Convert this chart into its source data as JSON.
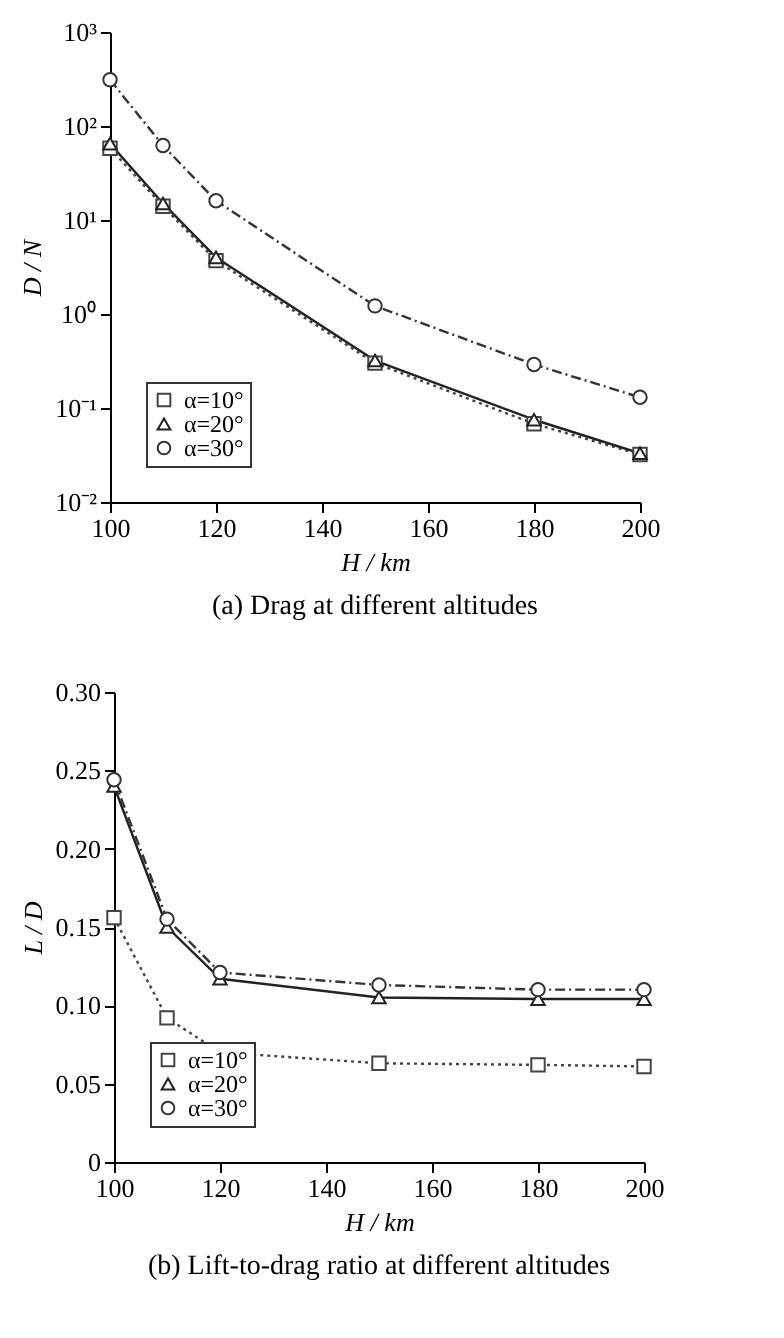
{
  "chart_data": [
    {
      "type": "line",
      "title": "(a) Drag at different altitudes",
      "xlabel": "H / km",
      "ylabel": "D / N",
      "x": [
        100,
        110,
        120,
        150,
        180,
        200
      ],
      "log": "y",
      "xlim": [
        100,
        200
      ],
      "xticks": [
        100,
        120,
        140,
        160,
        180,
        200
      ],
      "ylim": [
        0.01,
        1000
      ],
      "yticks": [
        {
          "value": 0.01,
          "label": "10⁻²"
        },
        {
          "value": 0.1,
          "label": "10⁻¹"
        },
        {
          "value": 1,
          "label": "10⁰"
        },
        {
          "value": 10,
          "label": "10¹"
        },
        {
          "value": 100,
          "label": "10²"
        },
        {
          "value": 1000,
          "label": "10³"
        }
      ],
      "legend": "bottom left",
      "grid": false,
      "series": [
        {
          "name": "α=10°",
          "color": "#444444",
          "marker": "square",
          "line_style": "dotted",
          "values": [
            58,
            14,
            3.7,
            0.3,
            0.068,
            0.032
          ]
        },
        {
          "name": "α=20°",
          "color": "#222222",
          "marker": "triangle",
          "line_style": "solid",
          "values": [
            65,
            15,
            4.0,
            0.32,
            0.075,
            0.033
          ]
        },
        {
          "name": "α=30°",
          "color": "#333333",
          "marker": "circle",
          "line_style": "dashdot",
          "values": [
            310,
            62,
            16,
            1.22,
            0.29,
            0.13
          ]
        }
      ]
    },
    {
      "type": "line",
      "title": "(b) Lift-to-drag ratio at different altitudes",
      "xlabel": "H / km",
      "ylabel": "L / D",
      "x": [
        100,
        110,
        120,
        150,
        180,
        200
      ],
      "xlim": [
        100,
        200
      ],
      "xticks": [
        100,
        120,
        140,
        160,
        180,
        200
      ],
      "ylim": [
        0,
        0.3
      ],
      "yticks": [
        0,
        0.05,
        {
          "value": 0.1,
          "label": "0.10"
        },
        0.15,
        {
          "value": 0.2,
          "label": "0.20"
        },
        0.25,
        {
          "value": 0.3,
          "label": "0.30"
        }
      ],
      "legend": "bottom left",
      "grid": false,
      "series": [
        {
          "name": "α=10°",
          "color": "#444444",
          "marker": "square",
          "line_style": "dotted",
          "values": [
            0.156,
            0.092,
            0.07,
            0.063,
            0.062,
            0.061
          ]
        },
        {
          "name": "α=20°",
          "color": "#222222",
          "marker": "triangle",
          "line_style": "solid",
          "values": [
            0.24,
            0.15,
            0.117,
            0.105,
            0.104,
            0.104
          ]
        },
        {
          "name": "α=30°",
          "color": "#333333",
          "marker": "circle",
          "line_style": "dashdot",
          "values": [
            0.244,
            0.155,
            0.121,
            0.113,
            0.11,
            0.11
          ]
        }
      ]
    }
  ]
}
